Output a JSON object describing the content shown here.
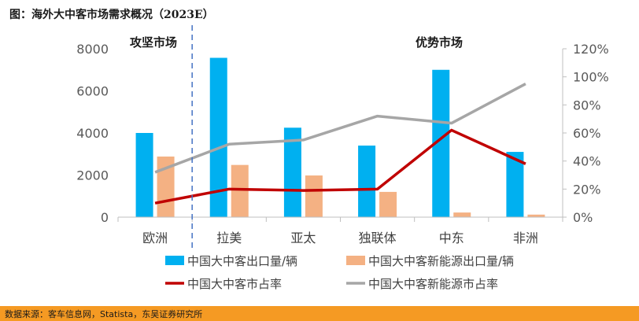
{
  "figure": {
    "title": "图：海外大中客市场需求概况（2023E）",
    "source": "数据来源：客车信息网，Statista，东吴证券研究所"
  },
  "chart_data": {
    "type": "bar",
    "categories": [
      "欧洲",
      "拉美",
      "亚太",
      "独联体",
      "中东",
      "非洲"
    ],
    "series": [
      {
        "name": "中国大中客出口量/辆",
        "type": "bar",
        "axis": "left",
        "color": "#00b0f0",
        "values": [
          4000,
          7570,
          4250,
          3400,
          7000,
          3100
        ]
      },
      {
        "name": "中国大中客新能源出口量/辆",
        "type": "bar",
        "axis": "left",
        "color": "#f4b183",
        "values": [
          2880,
          2480,
          1980,
          1200,
          220,
          120
        ]
      },
      {
        "name": "中国大中客市占率",
        "type": "line",
        "axis": "right",
        "color": "#c00000",
        "values": [
          10,
          20,
          19,
          20,
          62,
          38
        ]
      },
      {
        "name": "中国大中客新能源市占率",
        "type": "line",
        "axis": "right",
        "color": "#a6a6a6",
        "values": [
          32,
          52,
          55,
          72,
          67,
          95
        ]
      }
    ],
    "y_left": {
      "min": 0,
      "max": 8000,
      "ticks": [
        "0",
        "2000",
        "4000",
        "6000",
        "8000"
      ]
    },
    "y_right": {
      "min": 0,
      "max": 120,
      "ticks": [
        "0%",
        "20%",
        "40%",
        "60%",
        "80%",
        "100%",
        "120%"
      ]
    },
    "annotations": {
      "left_region": "攻坚市场",
      "right_region": "优势市场"
    },
    "divider_after_category": 0,
    "grid": false,
    "legend_position": "bottom"
  }
}
